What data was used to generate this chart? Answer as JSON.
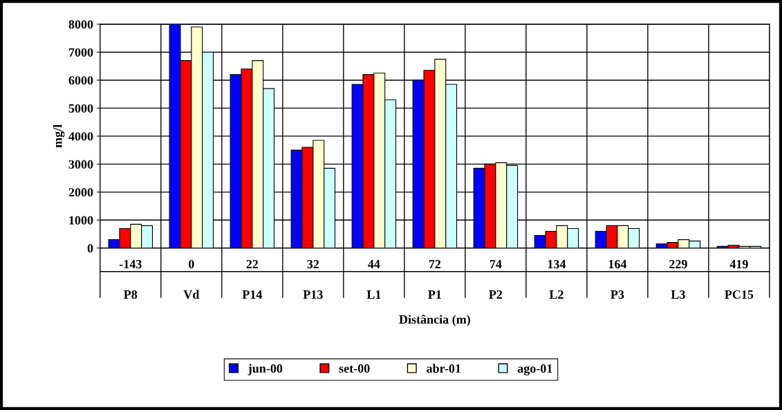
{
  "chart_data": {
    "type": "bar",
    "xlabel": "Distância (m)",
    "ylabel": "mg/l",
    "categories": [
      "-143\nP8",
      "0\nVd",
      "22\nP14",
      "32\nP13",
      "44\nL1",
      "72\nP1",
      "74\nP2",
      "134\nL2",
      "164\nP3",
      "229\nL3",
      "419\nPC15"
    ],
    "series": [
      {
        "name": "jun-00",
        "color": "#0000ff",
        "values": [
          300,
          8000,
          6200,
          3500,
          5850,
          6000,
          2850,
          450,
          600,
          150,
          60
        ]
      },
      {
        "name": "set-00",
        "color": "#ff0000",
        "values": [
          700,
          6700,
          6400,
          3600,
          6200,
          6350,
          3000,
          600,
          800,
          200,
          100
        ]
      },
      {
        "name": "abr-01",
        "color": "#ffffcc",
        "values": [
          850,
          7900,
          6700,
          3850,
          6250,
          6750,
          3050,
          800,
          800,
          300,
          60
        ]
      },
      {
        "name": "ago-01",
        "color": "#ccffff",
        "values": [
          800,
          7000,
          5700,
          2850,
          5300,
          5850,
          2950,
          700,
          700,
          250,
          60
        ]
      }
    ],
    "ylim": [
      0,
      8000
    ],
    "yticks": [
      0,
      1000,
      2000,
      3000,
      4000,
      5000,
      6000,
      7000,
      8000
    ],
    "grid": true,
    "legend": "bottom"
  }
}
